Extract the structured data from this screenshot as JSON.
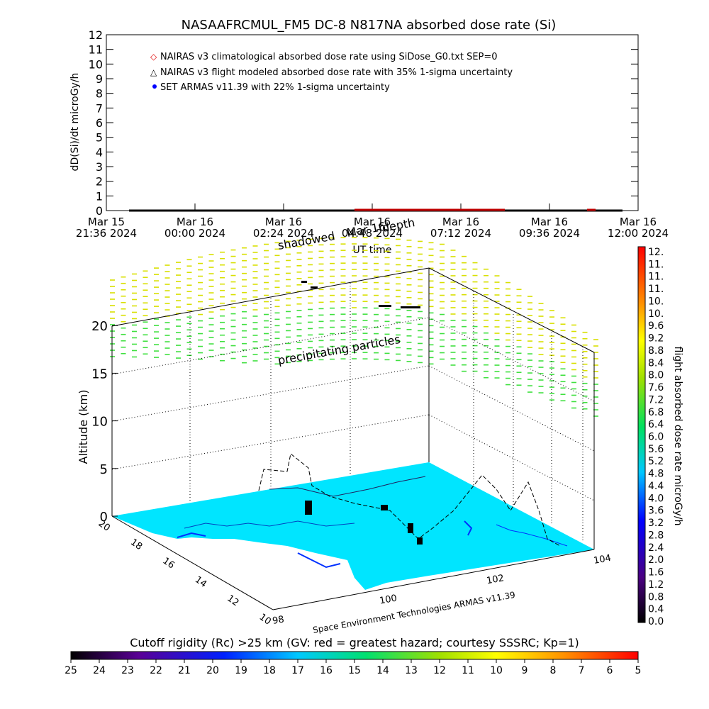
{
  "chart_data": [
    {
      "type": "scatter",
      "title": "NASAAFRCMUL_FM5 DC-8   N817NA absorbed dose rate (Si)",
      "ylabel": "dD(Si)/dt microGy/h",
      "xlabel": "UT time",
      "ylim": [
        0,
        12
      ],
      "yticks": [
        "0",
        "1",
        "2",
        "3",
        "4",
        "5",
        "6",
        "7",
        "8",
        "9",
        "10",
        "11",
        "12"
      ],
      "xticks": [
        {
          "date": "Mar 15",
          "time": "21:36 2024"
        },
        {
          "date": "Mar 16",
          "time": "00:00 2024"
        },
        {
          "date": "Mar 16",
          "time": "02:24 2024"
        },
        {
          "date": "Mar 16",
          "time": "04:48 2024"
        },
        {
          "date": "Mar 16",
          "time": "07:12 2024"
        },
        {
          "date": "Mar 16",
          "time": "09:36 2024"
        },
        {
          "date": "Mar 16",
          "time": "12:00 2024"
        }
      ],
      "legend": [
        {
          "marker": "◇",
          "color": "#e00000",
          "label": "NAIRAS v3 climatological absorbed dose rate using SiDose_G0.txt SEP=0"
        },
        {
          "marker": "△",
          "color": "#000000",
          "label": "NAIRAS v3 flight modeled absorbed dose rate with 35% 1-sigma uncertainty"
        },
        {
          "marker": "●",
          "color": "#0000ff",
          "label": "SET ARMAS v11.39 with 22% 1-sigma uncertainty"
        }
      ],
      "series": [
        {
          "name": "NAIRAS v3 climatological absorbed dose rate using SiDose_G0.txt SEP=0",
          "x": [
            "2024-03-16 03:30",
            "2024-03-16 06:30",
            "2024-03-16 10:30"
          ],
          "values": [
            0.05,
            0.05,
            0.05
          ]
        },
        {
          "name": "NAIRAS v3 flight modeled absorbed dose rate with 35% 1-sigma uncertainty",
          "x": [
            "2024-03-15 22:00",
            "2024-03-16 11:40"
          ],
          "values": [
            0.0,
            0.0
          ]
        }
      ]
    },
    {
      "type": "scatter",
      "zlabel": "Altitude (km)",
      "zticks": [
        "0",
        "5",
        "10",
        "15",
        "20"
      ],
      "lat_ticks": [
        "20",
        "18",
        "16",
        "14",
        "12",
        "10"
      ],
      "lon_ticks": [
        "98",
        "100",
        "102",
        "104"
      ],
      "annotations": [
        "shadowed",
        "Mar 16",
        "depth",
        "precipitating particles"
      ],
      "credit": "Space Environment Technologies ARMAS v11.39",
      "rigidity_label": "Cutoff rigidity (Rc) >25 km (GV: red = greatest hazard; courtesy SSSRC; Kp=1)",
      "rigidity_ticks": [
        "25",
        "24",
        "23",
        "22",
        "21",
        "20",
        "19",
        "18",
        "17",
        "16",
        "15",
        "14",
        "13",
        "12",
        "11",
        "10",
        "9",
        "8",
        "7",
        "6",
        "5"
      ],
      "colorbar_label": "flight absorbed dose rate microGy/h",
      "colorbar_ticks": [
        "12.",
        "11.",
        "11.",
        "11.",
        "10.",
        "10.",
        "9.6",
        "9.2",
        "8.8",
        "8.4",
        "8.0",
        "7.6",
        "7.2",
        "6.8",
        "6.4",
        "6.0",
        "5.6",
        "5.2",
        "4.8",
        "4.4",
        "4.0",
        "3.6",
        "3.2",
        "2.8",
        "2.4",
        "2.0",
        "1.6",
        "1.2",
        "0.8",
        "0.4",
        "0.0"
      ]
    }
  ]
}
